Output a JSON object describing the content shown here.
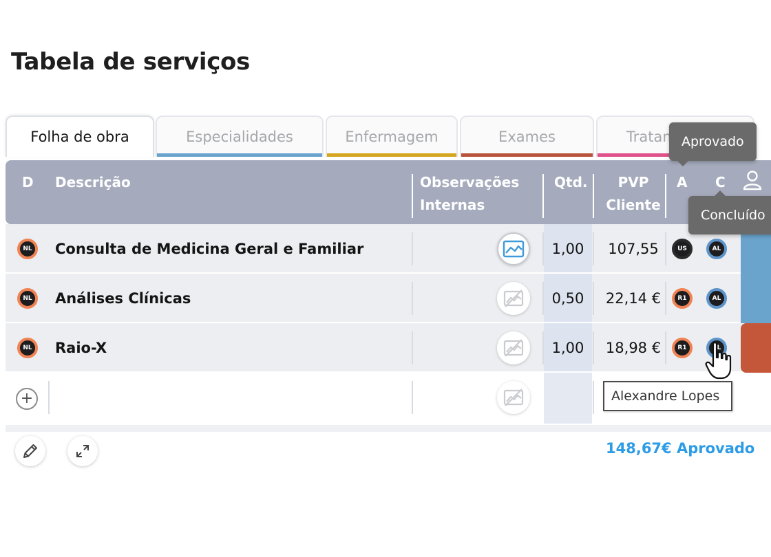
{
  "page": {
    "title": "Tabela de serviços"
  },
  "tabs": [
    {
      "label": "Folha de obra",
      "color": "#ffffff",
      "active": true
    },
    {
      "label": "Especialidades",
      "color": "#6aa3cc"
    },
    {
      "label": "Enfermagem",
      "color": "#d4a51e"
    },
    {
      "label": "Exames",
      "color": "#b9523a"
    },
    {
      "label": "Tratam",
      "color": "#e0508a"
    }
  ],
  "columns": {
    "d": "D",
    "descricao": "Descrição",
    "obs_line1": "Observações",
    "obs_line2": "Internas",
    "qtd": "Qtd.",
    "pvp_line1": "PVP",
    "pvp_line2": "Cliente",
    "a": "A",
    "c": "C",
    "user_icon": "user-icon"
  },
  "rows": [
    {
      "d_badge": "NL",
      "descricao": "Consulta de Medicina Geral e Familiar",
      "obs_icon": "image-icon",
      "qtd": "1,00",
      "pvp": "107,55",
      "a_badge": "US",
      "c_badge": "AL",
      "side_color": "#6aa3cc"
    },
    {
      "d_badge": "NL",
      "descricao": "Análises Clínicas",
      "obs_icon": "image-off-icon",
      "qtd": "0,50",
      "pvp": "22,14 €",
      "a_badge": "R1",
      "c_badge": "AL",
      "side_color": "#6aa3cc"
    },
    {
      "d_badge": "NL",
      "descricao": "Raio-X",
      "obs_icon": "image-off-icon",
      "qtd": "1,00",
      "pvp": "18,98 €",
      "a_badge": "R1",
      "c_badge": "AL",
      "side_color": "#c4573a"
    }
  ],
  "footer": {
    "edit_icon": "pencil-icon",
    "expand_icon": "expand-icon",
    "total": "148,67€ Aprovado"
  },
  "tooltips": {
    "approved": "Aprovado",
    "completed": "Concluído",
    "user": "Alexandre Lopes"
  }
}
